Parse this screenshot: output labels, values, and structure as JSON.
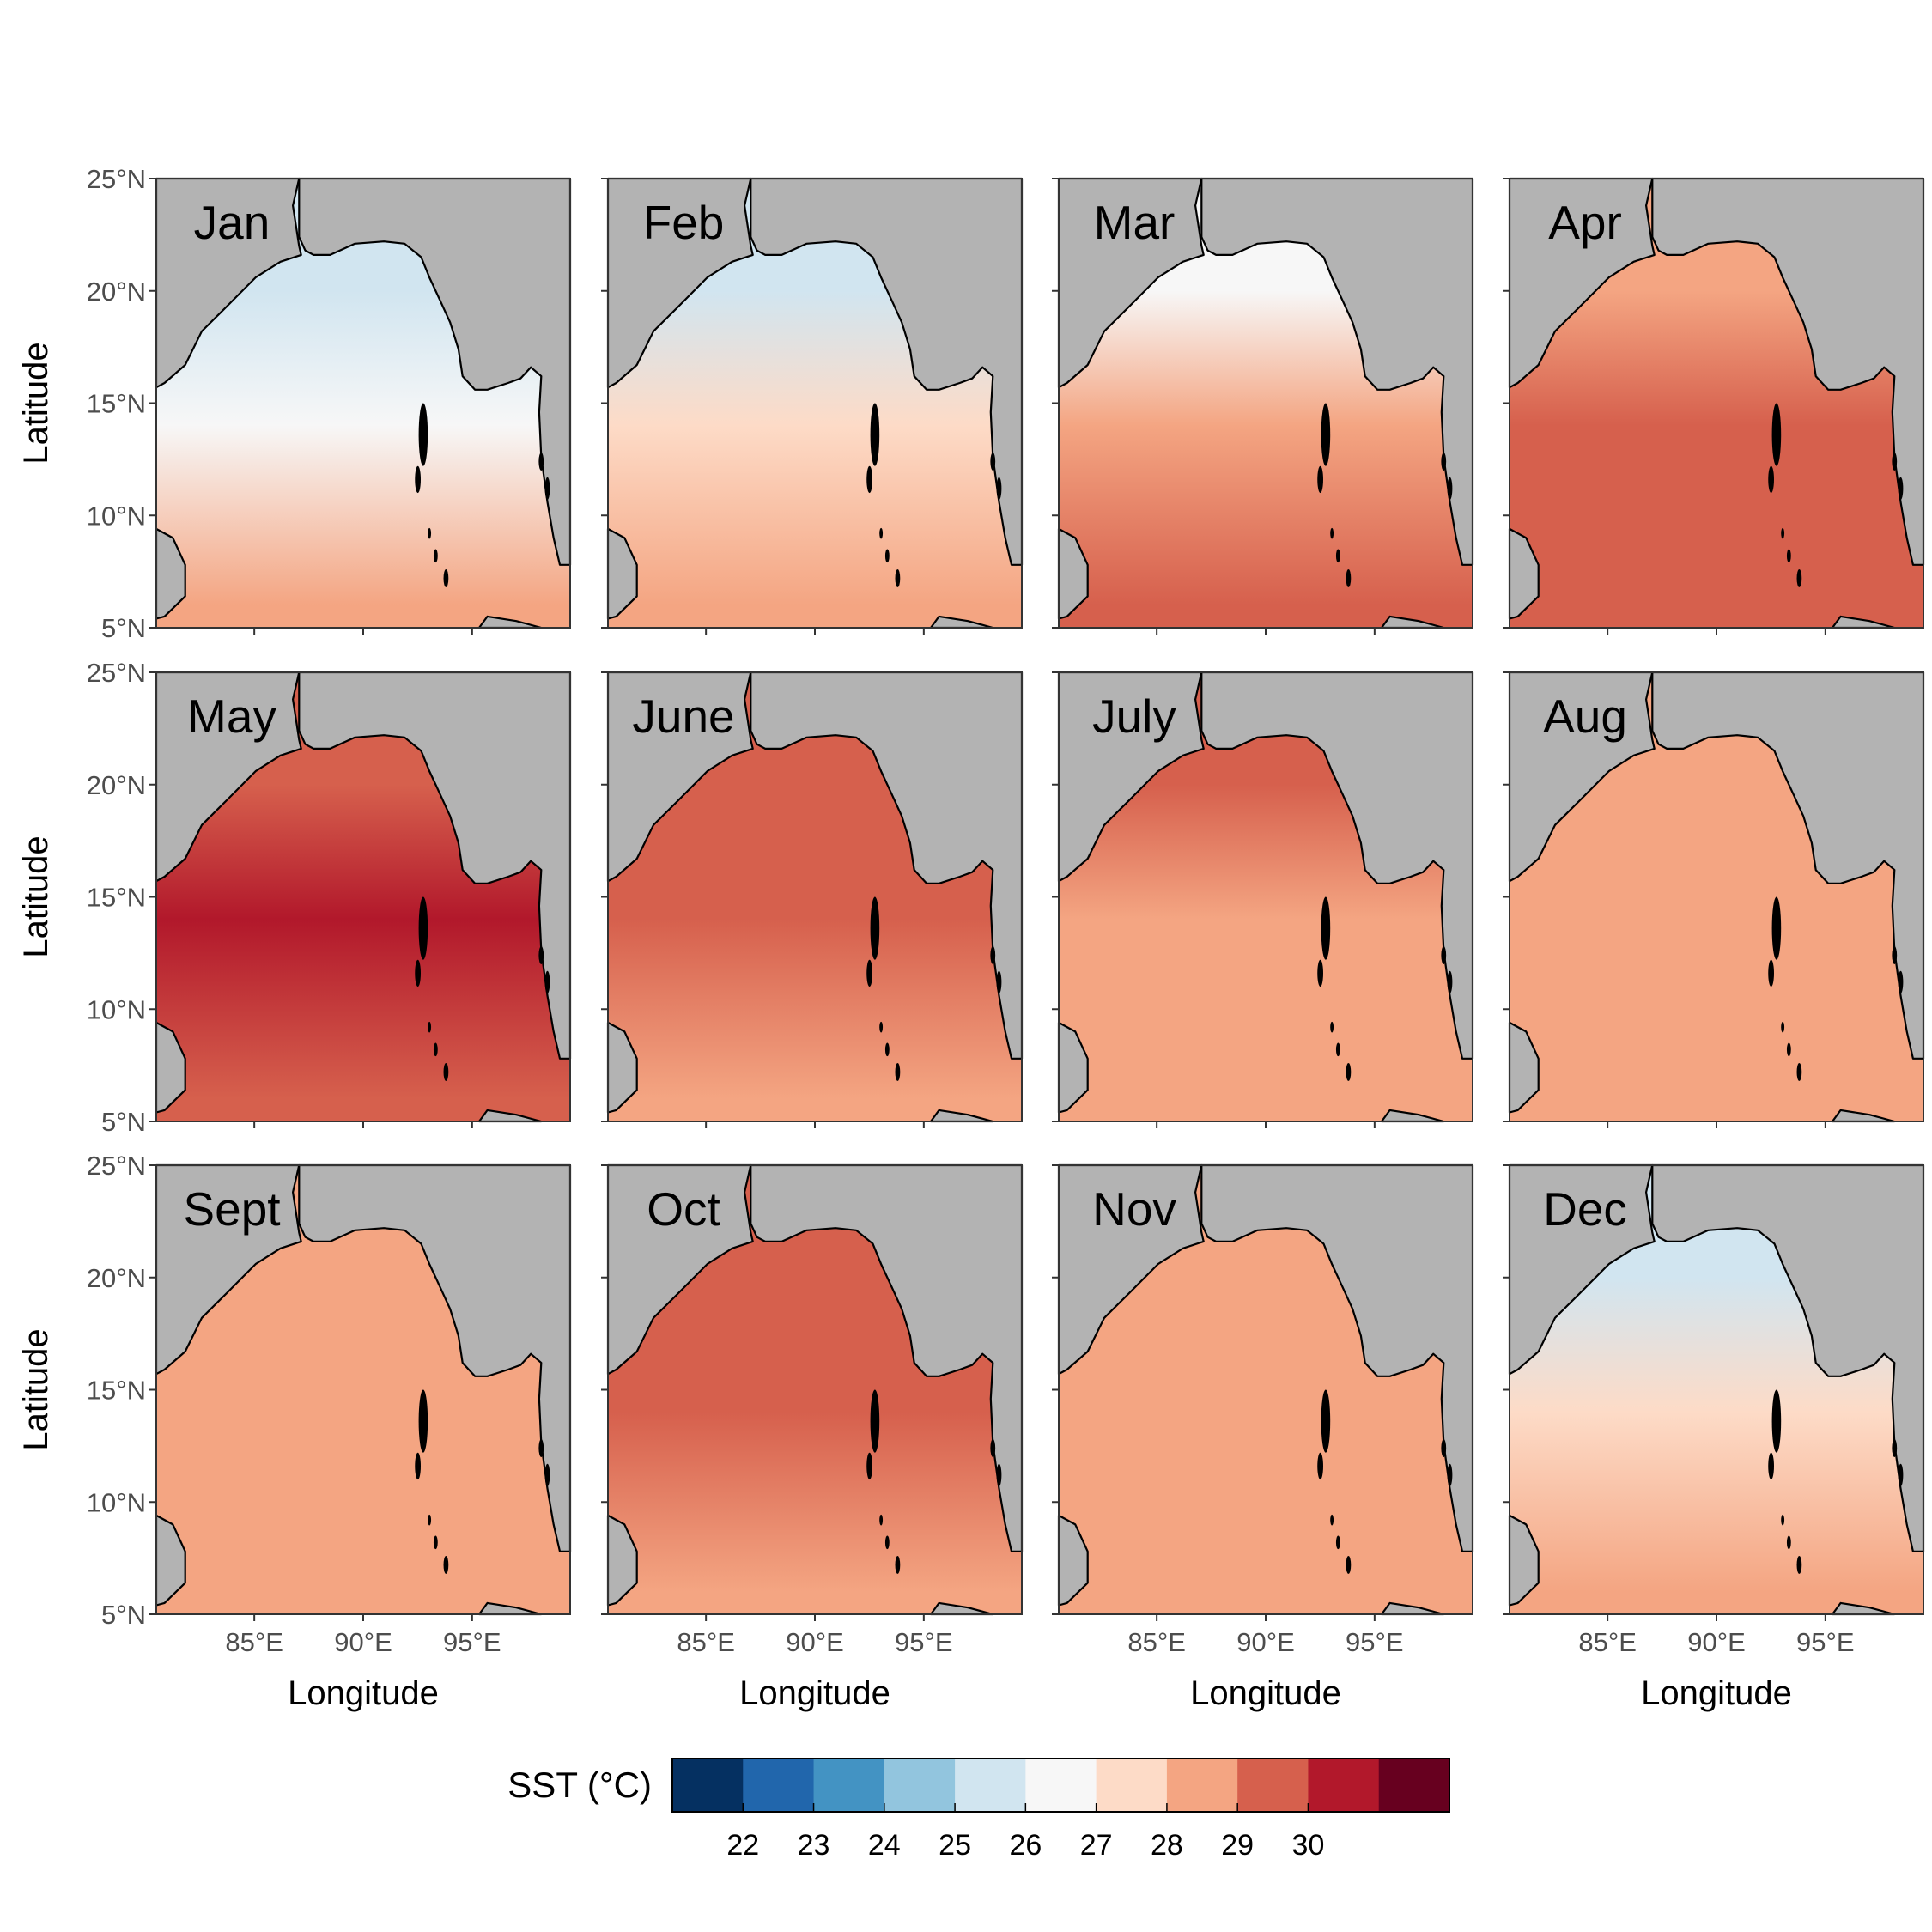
{
  "chart_data": {
    "type": "heatmap",
    "description_units": "sea surface temperature, degrees Celsius",
    "x_axis": {
      "label": "Longitude",
      "ticks": [
        "85°E",
        "90°E",
        "95°E"
      ],
      "range": [
        80.5,
        99.5
      ]
    },
    "y_axis": {
      "label": "Latitude",
      "ticks": [
        "5°N",
        "10°N",
        "15°N",
        "20°N",
        "25°N"
      ],
      "range": [
        5,
        25
      ]
    },
    "legend": {
      "title": "SST (°C)",
      "position": "bottom",
      "tick_labels": [
        "22",
        "23",
        "24",
        "25",
        "26",
        "27",
        "28",
        "29",
        "30"
      ],
      "bin_colors": [
        "#053061",
        "#2166ac",
        "#4393c3",
        "#92c5de",
        "#d1e5f0",
        "#f7f7f7",
        "#fddbc7",
        "#f4a582",
        "#d6604d",
        "#b2182b",
        "#67001f"
      ]
    },
    "land_color": "#b3b3b3",
    "panels": [
      {
        "month": "Jan",
        "sst": {
          "north": 25.0,
          "central": 26.8,
          "south": 28.2
        }
      },
      {
        "month": "Feb",
        "sst": {
          "north": 25.6,
          "central": 27.3,
          "south": 28.6
        }
      },
      {
        "month": "Mar",
        "sst": {
          "north": 26.8,
          "central": 28.4,
          "south": 29.3
        }
      },
      {
        "month": "Apr",
        "sst": {
          "north": 28.8,
          "central": 29.6,
          "south": 29.9
        }
      },
      {
        "month": "May",
        "sst": {
          "north": 29.4,
          "central": 30.2,
          "south": 29.7
        }
      },
      {
        "month": "June",
        "sst": {
          "north": 29.3,
          "central": 29.1,
          "south": 28.9
        }
      },
      {
        "month": "July",
        "sst": {
          "north": 29.0,
          "central": 28.9,
          "south": 28.7
        }
      },
      {
        "month": "Aug",
        "sst": {
          "north": 28.8,
          "central": 28.7,
          "south": 28.6
        }
      },
      {
        "month": "Sept",
        "sst": {
          "north": 28.9,
          "central": 28.8,
          "south": 28.7
        }
      },
      {
        "month": "Oct",
        "sst": {
          "north": 29.4,
          "central": 29.2,
          "south": 28.9
        }
      },
      {
        "month": "Nov",
        "sst": {
          "north": 28.2,
          "central": 28.6,
          "south": 28.7
        }
      },
      {
        "month": "Dec",
        "sst": {
          "north": 25.8,
          "central": 27.4,
          "south": 28.3
        }
      }
    ]
  }
}
